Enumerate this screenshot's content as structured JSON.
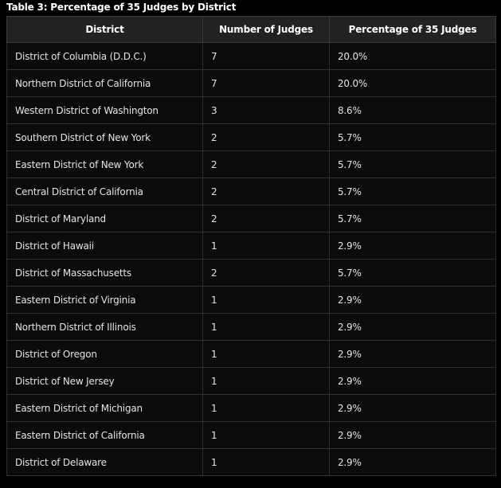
{
  "caption": "Table 3: Percentage of 35 Judges by District",
  "table": {
    "headers": [
      "District",
      "Number of Judges",
      "Percentage of 35 Judges"
    ],
    "rows": [
      [
        "District of Columbia (D.D.C.)",
        "7",
        "20.0%"
      ],
      [
        "Northern District of California",
        "7",
        "20.0%"
      ],
      [
        "Western District of Washington",
        "3",
        "8.6%"
      ],
      [
        "Southern District of New York",
        "2",
        "5.7%"
      ],
      [
        "Eastern District of New York",
        "2",
        "5.7%"
      ],
      [
        "Central District of California",
        "2",
        "5.7%"
      ],
      [
        "District of Maryland",
        "2",
        "5.7%"
      ],
      [
        "District of Hawaii",
        "1",
        "2.9%"
      ],
      [
        "District of Massachusetts",
        "2",
        "5.7%"
      ],
      [
        "Eastern District of Virginia",
        "1",
        "2.9%"
      ],
      [
        "Northern District of Illinois",
        "1",
        "2.9%"
      ],
      [
        "District of Oregon",
        "1",
        "2.9%"
      ],
      [
        "District of New Jersey",
        "1",
        "2.9%"
      ],
      [
        "Eastern District of Michigan",
        "1",
        "2.9%"
      ],
      [
        "Eastern District of California",
        "1",
        "2.9%"
      ],
      [
        "District of Delaware",
        "1",
        "2.9%"
      ]
    ]
  },
  "colors": {
    "background": "#000000",
    "header_background": "#222222",
    "row_background": "#0b0b0b",
    "border": "#2e2e2e",
    "text": "#e4e4e4"
  }
}
